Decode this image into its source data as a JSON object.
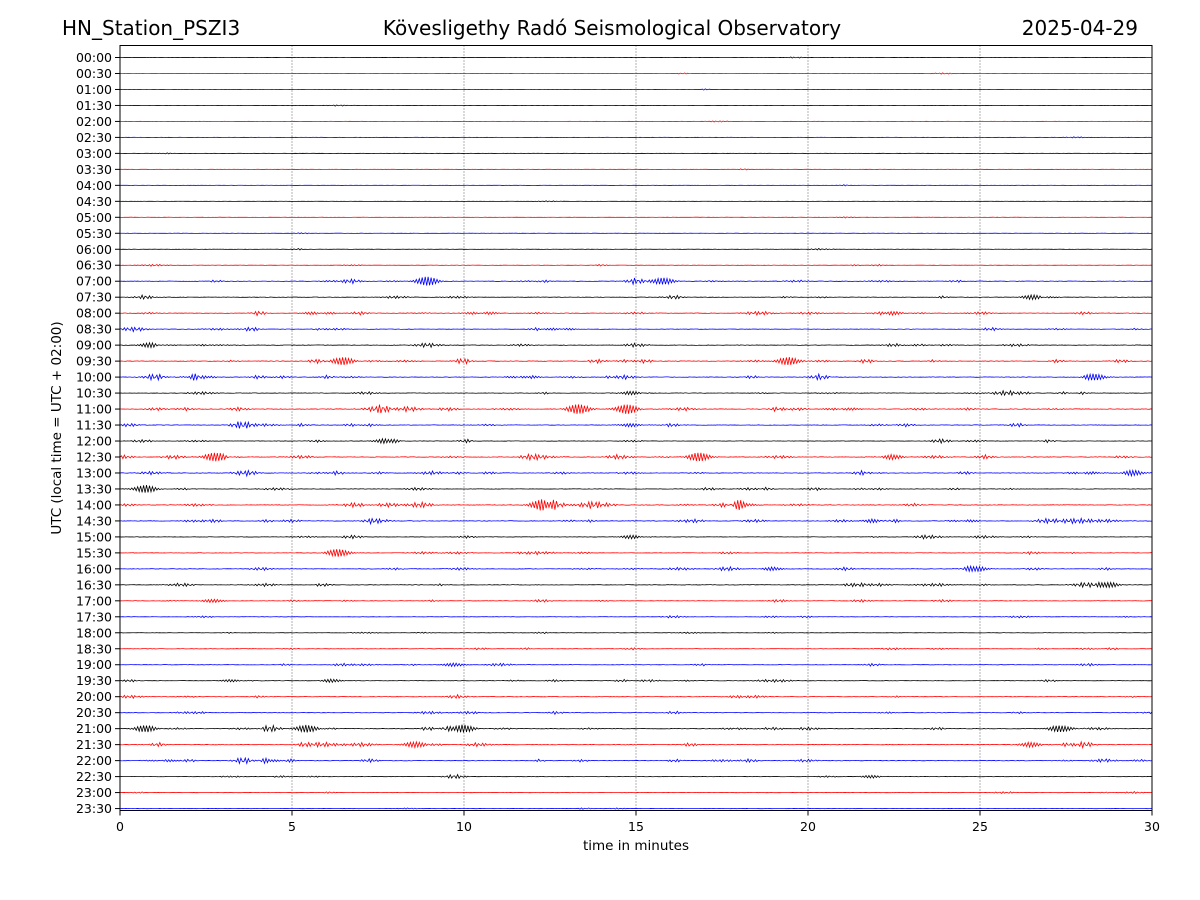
{
  "chart_data": {
    "type": "line",
    "title_left": "HN_Station_PSZI3",
    "title": "Kövesligethy Radó Seismological Observatory",
    "title_right": "2025-04-29",
    "xlabel": "time in minutes",
    "ylabel": "UTC (local time = UTC + 02:00)",
    "xlim": [
      0,
      30
    ],
    "xticks": [
      "0",
      "5",
      "10",
      "15",
      "20",
      "25",
      "30"
    ],
    "xtick_values": [
      0,
      5,
      10,
      15,
      20,
      25,
      30
    ],
    "grid_x": true,
    "trace_labels": [
      "00:00",
      "00:30",
      "01:00",
      "01:30",
      "02:00",
      "02:30",
      "03:00",
      "03:30",
      "04:00",
      "04:30",
      "05:00",
      "05:30",
      "06:00",
      "06:30",
      "07:00",
      "07:30",
      "08:00",
      "08:30",
      "09:00",
      "09:30",
      "10:00",
      "10:30",
      "11:00",
      "11:30",
      "12:00",
      "12:30",
      "13:00",
      "13:30",
      "14:00",
      "14:30",
      "15:00",
      "15:30",
      "16:00",
      "16:30",
      "17:00",
      "17:30",
      "18:00",
      "18:30",
      "19:00",
      "19:30",
      "20:00",
      "20:30",
      "21:00",
      "21:30",
      "22:00",
      "22:30",
      "23:00",
      "23:30"
    ],
    "trace_color_cycle": [
      "#000000",
      "#ff0000",
      "#0000ff"
    ],
    "trace_activity": [
      0.02,
      0.05,
      0.02,
      0.02,
      0.02,
      0.02,
      0.02,
      0.02,
      0.02,
      0.02,
      0.03,
      0.03,
      0.08,
      0.15,
      0.45,
      0.3,
      0.45,
      0.35,
      0.4,
      0.5,
      0.5,
      0.4,
      0.55,
      0.45,
      0.35,
      0.5,
      0.5,
      0.35,
      0.55,
      0.55,
      0.3,
      0.3,
      0.4,
      0.4,
      0.3,
      0.2,
      0.2,
      0.3,
      0.3,
      0.3,
      0.3,
      0.3,
      0.5,
      0.45,
      0.5,
      0.2,
      0.15,
      0.1
    ],
    "bursts": [
      {
        "trace": 14,
        "minute": 9.0,
        "amp": 1.0
      },
      {
        "trace": 14,
        "minute": 15.8,
        "amp": 0.6
      },
      {
        "trace": 15,
        "minute": 26.7,
        "amp": 1.0
      },
      {
        "trace": 16,
        "minute": 5.8,
        "amp": 0.8
      },
      {
        "trace": 16,
        "minute": 10.5,
        "amp": 0.8
      },
      {
        "trace": 16,
        "minute": 22.3,
        "amp": 0.6
      },
      {
        "trace": 17,
        "minute": 12.8,
        "amp": 0.7
      },
      {
        "trace": 18,
        "minute": 1.0,
        "amp": 0.7
      },
      {
        "trace": 19,
        "minute": 6.5,
        "amp": 0.7
      },
      {
        "trace": 19,
        "minute": 19.5,
        "amp": 0.9
      },
      {
        "trace": 20,
        "minute": 2.3,
        "amp": 0.9
      },
      {
        "trace": 20,
        "minute": 11.7,
        "amp": 0.8
      },
      {
        "trace": 20,
        "minute": 28.2,
        "amp": 0.9
      },
      {
        "trace": 21,
        "minute": 15.0,
        "amp": 0.6
      },
      {
        "trace": 22,
        "minute": 13.3,
        "amp": 0.9
      },
      {
        "trace": 22,
        "minute": 14.8,
        "amp": 1.0
      },
      {
        "trace": 22,
        "minute": 21.0,
        "amp": 0.7
      },
      {
        "trace": 23,
        "minute": 15.0,
        "amp": 0.6
      },
      {
        "trace": 24,
        "minute": 7.8,
        "amp": 0.5
      },
      {
        "trace": 25,
        "minute": 2.7,
        "amp": 0.9
      },
      {
        "trace": 25,
        "minute": 16.8,
        "amp": 0.8
      },
      {
        "trace": 25,
        "minute": 22.3,
        "amp": 0.8
      },
      {
        "trace": 26,
        "minute": 29.3,
        "amp": 0.9
      },
      {
        "trace": 26,
        "minute": 28.0,
        "amp": 0.7
      },
      {
        "trace": 27,
        "minute": 0.8,
        "amp": 0.8
      },
      {
        "trace": 28,
        "minute": 12.3,
        "amp": 1.0
      },
      {
        "trace": 28,
        "minute": 18.0,
        "amp": 0.6
      },
      {
        "trace": 29,
        "minute": 22.1,
        "amp": 1.0
      },
      {
        "trace": 29,
        "minute": 24.5,
        "amp": 0.6
      },
      {
        "trace": 30,
        "minute": 15.0,
        "amp": 0.6
      },
      {
        "trace": 31,
        "minute": 6.3,
        "amp": 0.7
      },
      {
        "trace": 32,
        "minute": 18.8,
        "amp": 0.6
      },
      {
        "trace": 32,
        "minute": 24.8,
        "amp": 0.6
      },
      {
        "trace": 33,
        "minute": 28.8,
        "amp": 0.6
      },
      {
        "trace": 34,
        "minute": 2.6,
        "amp": 0.4
      },
      {
        "trace": 38,
        "minute": 9.6,
        "amp": 0.4
      },
      {
        "trace": 39,
        "minute": 3.4,
        "amp": 0.5
      },
      {
        "trace": 39,
        "minute": 6.0,
        "amp": 0.5
      },
      {
        "trace": 42,
        "minute": 0.8,
        "amp": 0.7
      },
      {
        "trace": 42,
        "minute": 5.5,
        "amp": 0.8
      },
      {
        "trace": 42,
        "minute": 10.0,
        "amp": 0.7
      },
      {
        "trace": 42,
        "minute": 27.3,
        "amp": 0.6
      },
      {
        "trace": 43,
        "minute": 8.5,
        "amp": 0.6
      },
      {
        "trace": 43,
        "minute": 26.6,
        "amp": 0.7
      },
      {
        "trace": 44,
        "minute": 1.2,
        "amp": 0.6
      },
      {
        "trace": 44,
        "minute": 4.6,
        "amp": 0.8
      },
      {
        "trace": 45,
        "minute": 22.0,
        "amp": 0.5
      }
    ]
  }
}
